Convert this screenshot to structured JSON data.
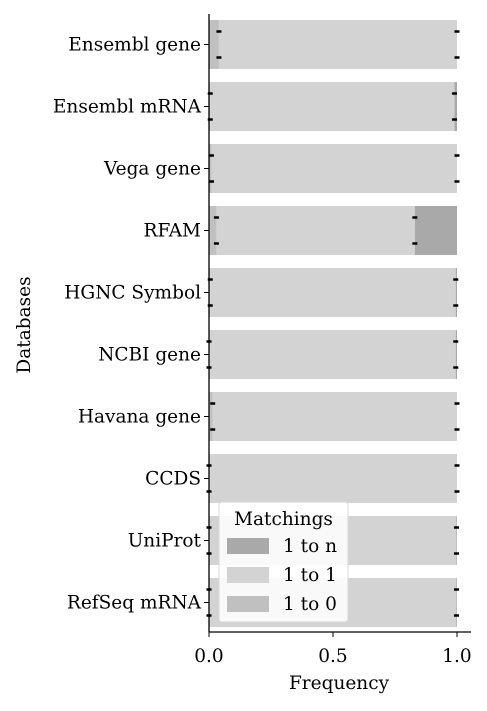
{
  "chart_data": {
    "type": "bar",
    "orientation": "horizontal",
    "stacked": true,
    "xlabel": "Frequency",
    "ylabel": "Databases",
    "xlim": [
      0.0,
      1.0
    ],
    "xticks": [
      "0.0",
      "0.5",
      "1.0"
    ],
    "categories": [
      "Ensembl gene",
      "Ensembl mRNA",
      "Vega gene",
      "RFAM",
      "HGNC Symbol",
      "NCBI gene",
      "Havana gene",
      "CCDS",
      "UniProt",
      "RefSeq mRNA"
    ],
    "series": [
      {
        "name": "1 to n",
        "color": "#a9a9a9",
        "values": [
          0.0,
          0.01,
          0.0,
          0.17,
          0.005,
          0.005,
          0.0,
          0.0,
          0.002,
          0.002
        ]
      },
      {
        "name": "1 to 1",
        "color": "#d3d3d3",
        "values": [
          0.96,
          0.985,
          0.99,
          0.8,
          0.99,
          0.995,
          0.985,
          1.0,
          0.998,
          0.998
        ]
      },
      {
        "name": "1 to 0",
        "color": "#c0c0c0",
        "values": [
          0.04,
          0.005,
          0.01,
          0.03,
          0.005,
          0.0,
          0.015,
          0.0,
          0.0,
          0.0
        ]
      }
    ],
    "legend": {
      "title": "Matchings",
      "placement": "lower-center"
    },
    "grid": false
  }
}
